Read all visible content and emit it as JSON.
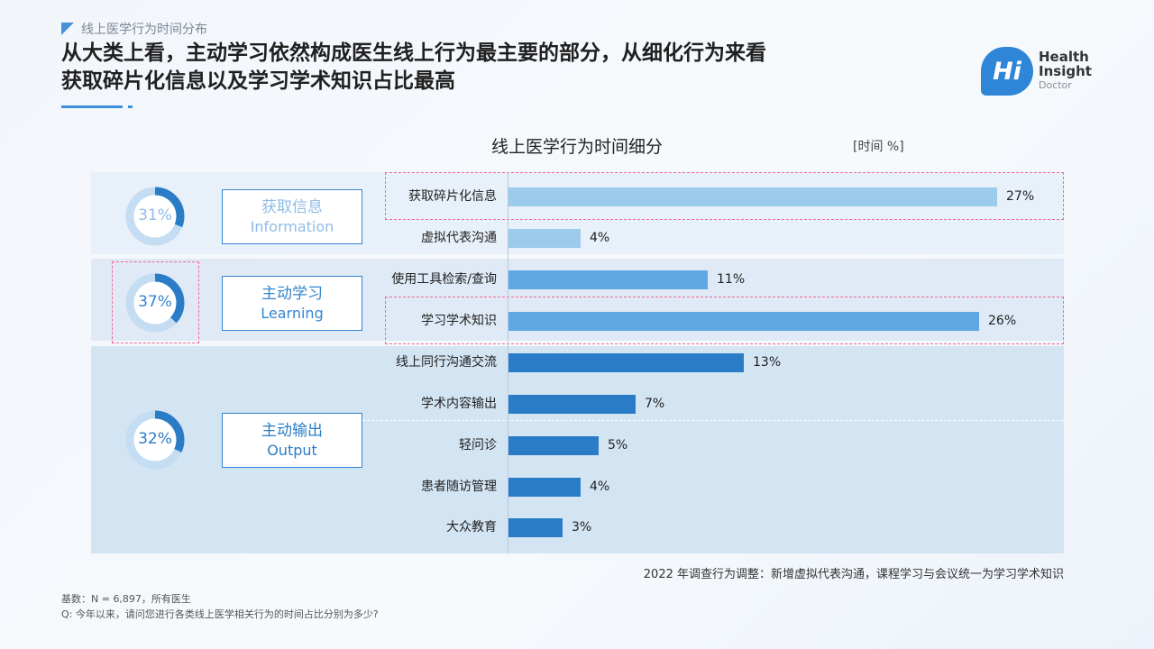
{
  "header": {
    "section_label": "线上医学行为时间分布",
    "headline_line1": "从大类上看，主动学习依然构成医生线上行为最主要的部分，从细化行为来看",
    "headline_line2": "获取碎片化信息以及学习学术知识占比最高"
  },
  "logo": {
    "badge": "Hi",
    "line1": "Health",
    "line2": "Insight",
    "line3": "Doctor"
  },
  "colors": {
    "accent": "#3f8fdc",
    "highlight": "#f06a90"
  },
  "chart_data": {
    "type": "bar",
    "orientation": "horizontal",
    "title": "线上医学行为时间细分",
    "unit": "[时间 %]",
    "xlim": [
      0,
      27
    ],
    "groups": [
      {
        "name_cn": "获取信息",
        "name_en": "Information",
        "share": 31,
        "share_label": "31%",
        "color": "#9ccbee",
        "ring_color": "#2a7cc7",
        "ring_track": "#c4ddf2",
        "text_color": "#8fbce6",
        "highlight": false
      },
      {
        "name_cn": "主动学习",
        "name_en": "Learning",
        "share": 37,
        "share_label": "37%",
        "color": "#5ea9e4",
        "ring_color": "#2a7cc7",
        "ring_track": "#c4ddf2",
        "text_color": "#3585d0",
        "highlight": true
      },
      {
        "name_cn": "主动输出",
        "name_en": "Output",
        "share": 32,
        "share_label": "32%",
        "color": "#2a7cc7",
        "ring_color": "#2a7cc7",
        "ring_track": "#c4ddf2",
        "text_color": "#2a7cc7",
        "highlight": false
      }
    ],
    "categories": [
      "获取碎片化信息",
      "虚拟代表沟通",
      "使用工具检索/查询",
      "学习学术知识",
      "线上同行沟通交流",
      "学术内容输出",
      "轻问诊",
      "患者随访管理",
      "大众教育"
    ],
    "values": [
      27,
      4,
      11,
      26,
      13,
      7,
      5,
      4,
      3
    ],
    "value_labels": [
      "27%",
      "4%",
      "11%",
      "26%",
      "13%",
      "7%",
      "5%",
      "4%",
      "3%"
    ],
    "group_index": [
      0,
      0,
      1,
      1,
      2,
      2,
      2,
      2,
      2
    ],
    "highlighted_categories": [
      "获取碎片化信息",
      "学习学术知识"
    ],
    "note": "2022 年调查行为调整：新增虚拟代表沟通，课程学习与会议统一为学习学术知识"
  },
  "footer": {
    "base": "基数：N = 6,897，所有医生",
    "question": "Q: 今年以来，请问您进行各类线上医学相关行为的时间占比分别为多少?"
  }
}
